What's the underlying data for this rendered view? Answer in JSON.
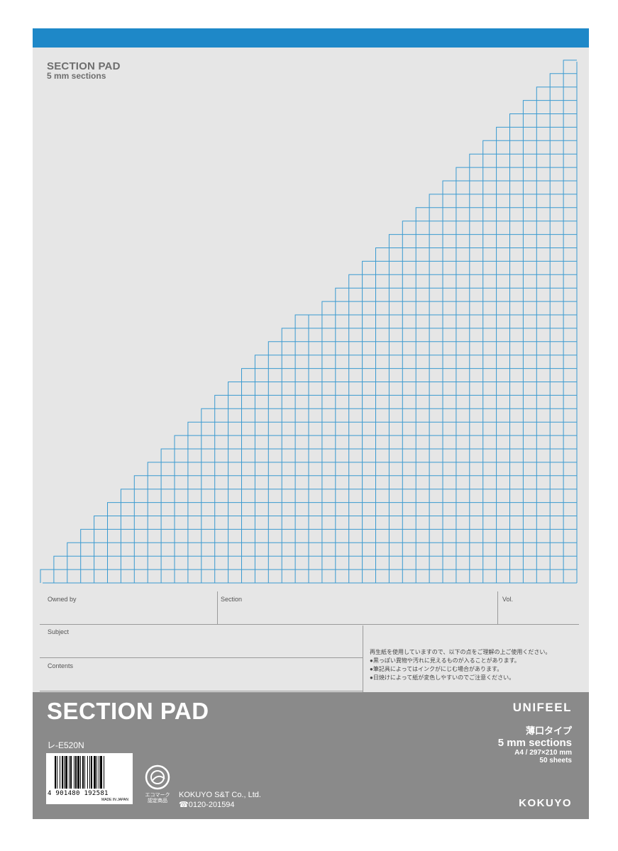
{
  "cover": {
    "title": "SECTION PAD",
    "subtitle": "5 mm sections"
  },
  "form": {
    "owned_by": "Owned by",
    "section": "Section",
    "vol": "Vol.",
    "subject": "Subject",
    "contents": "Contents",
    "notes": [
      "再生紙を使用していますので、以下の点をご理解の上ご使用ください。",
      "●黒っぽい異物や汚れに見えるものが入ることがあります。",
      "●筆記具によってはインクがにじむ場合があります。",
      "●日焼けによって紙が変色しやすいのでご注意ください。"
    ]
  },
  "footer": {
    "title": "SECTION PAD",
    "product_code": "レ-E520N",
    "brand": "UNIFEEL",
    "type": "薄口タイプ",
    "ruling": "5 mm sections",
    "size": "A4 / 297×210 mm",
    "sheets": "50 sheets",
    "barcode_digits": "4 901480 192581",
    "made_in": "MADE IN JAPAN",
    "eco_mark": "エコマーク 認定商品",
    "company": "KOKUYO S&T Co., Ltd.",
    "phone": "0120-201594",
    "maker": "KOKUYO"
  },
  "colors": {
    "top_bar": "#1e88c8",
    "grid": "#3a9ad0",
    "paper": "#e6e6e6",
    "footer": "#8a8a8a"
  }
}
